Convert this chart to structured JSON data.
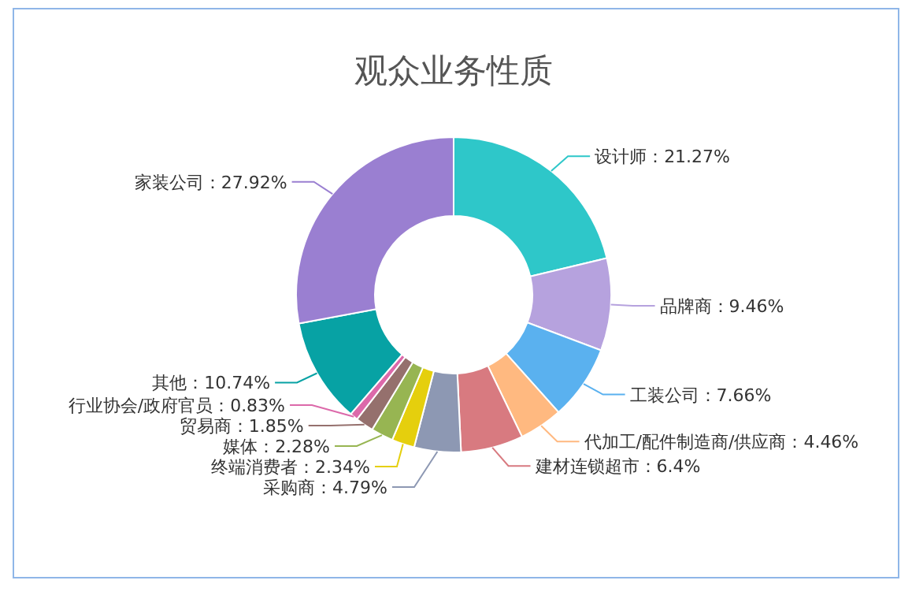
{
  "chart_data": {
    "type": "donut",
    "title": "观众业务性质",
    "categories": [
      "设计师",
      "品牌商",
      "工装公司",
      "代加工/配件制造商/供应商",
      "建材连锁超市",
      "采购商",
      "终端消费者",
      "媒体",
      "贸易商",
      "行业协会/政府官员",
      "其他",
      "家装公司"
    ],
    "values": [
      21.27,
      9.46,
      7.66,
      4.46,
      6.4,
      4.79,
      2.34,
      2.28,
      1.85,
      0.83,
      10.74,
      27.92
    ],
    "colors": [
      "#2ec7c9",
      "#b6a2de",
      "#5ab1ef",
      "#ffb980",
      "#d87a80",
      "#8d98b3",
      "#e5cf0d",
      "#97b552",
      "#95706d",
      "#dc69aa",
      "#07a2a4",
      "#9a7fd1"
    ],
    "value_labels": [
      "21.27%",
      "9.46%",
      "7.66%",
      "4.46%",
      "6.4%",
      "4.79%",
      "2.34%",
      "2.28%",
      "1.85%",
      "0.83%",
      "10.74%",
      "27.92%"
    ]
  }
}
